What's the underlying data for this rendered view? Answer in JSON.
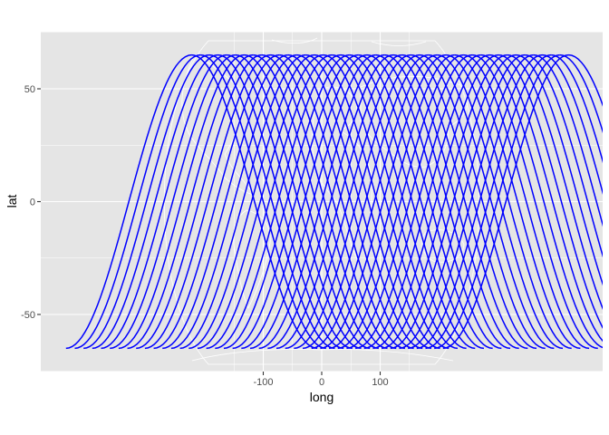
{
  "chart_data": {
    "type": "map",
    "xlabel": "long",
    "ylabel": "lat",
    "x_ticks": [
      {
        "value": -100,
        "label": "-100"
      },
      {
        "value": 0,
        "label": "0"
      },
      {
        "value": 100,
        "label": "100"
      }
    ],
    "y_ticks": [
      {
        "value": 50,
        "label": "50"
      },
      {
        "value": 0,
        "label": "0"
      },
      {
        "value": -50,
        "label": "-50"
      }
    ],
    "xlim": [
      -490,
      490
    ],
    "ylim": [
      -75,
      75
    ],
    "panel_background": "#e5e5e5",
    "gridline_color": "#ffffff",
    "basemap_outline_color": "#ffffff",
    "track_color": "#0000ff",
    "tracks": {
      "description_free_params": true,
      "max_lat": 65,
      "period_long": 430,
      "offset_step_long": 15,
      "count": 44
    },
    "grid": true
  }
}
